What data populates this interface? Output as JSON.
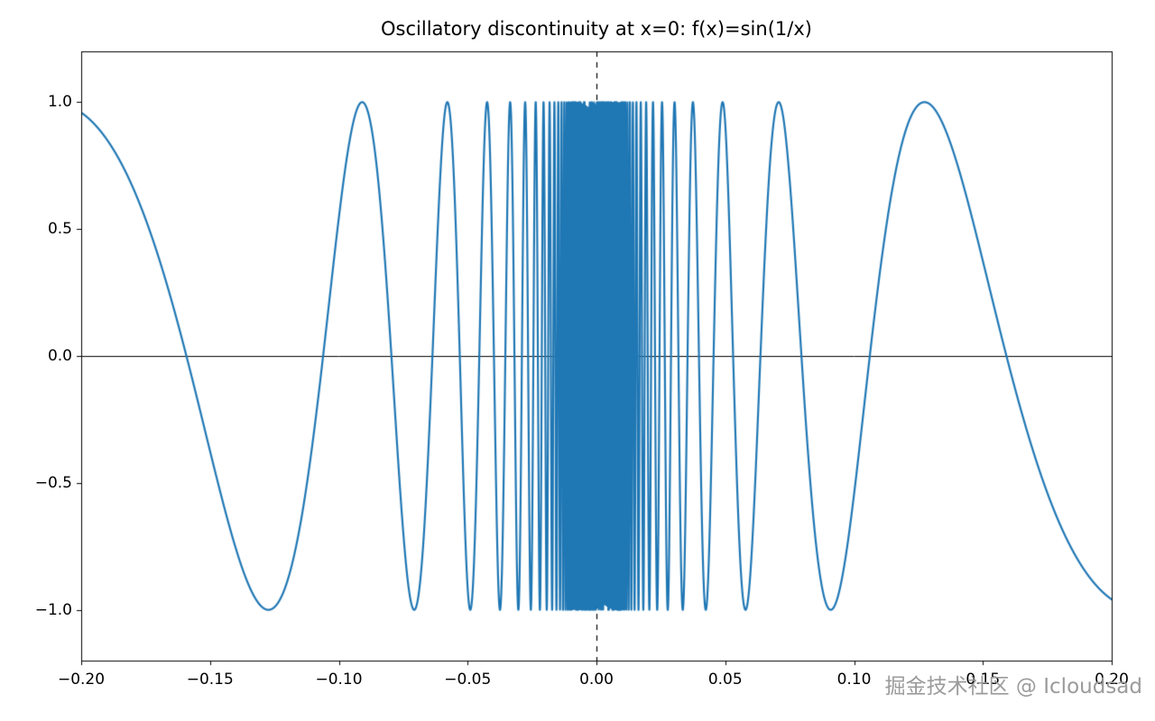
{
  "chart_data": {
    "type": "line",
    "title": "Oscillatory discontinuity at x=0: f(x)=sin(1/x)",
    "function": "sin(1/x)",
    "x_range": [
      -0.2,
      0.2
    ],
    "samples": 30000,
    "xlim": [
      -0.2,
      0.2
    ],
    "ylim": [
      -1.2,
      1.2
    ],
    "x_ticks": [
      -0.2,
      -0.15,
      -0.1,
      -0.05,
      0.0,
      0.05,
      0.1,
      0.15,
      0.2
    ],
    "x_tick_labels": [
      "−0.20",
      "−0.15",
      "−0.10",
      "−0.05",
      "0.00",
      "0.05",
      "0.10",
      "0.15",
      "0.20"
    ],
    "y_ticks": [
      -1.0,
      -0.5,
      0.0,
      0.5,
      1.0
    ],
    "y_tick_labels": [
      "−1.0",
      "−0.5",
      "0.0",
      "0.5",
      "1.0"
    ],
    "line_color": "#1f77b4",
    "line_width": 2.2,
    "hline_y": 0,
    "vline_x": 0,
    "vline_style": "dashed",
    "grid": false,
    "legend": null,
    "xlabel": "",
    "ylabel": ""
  },
  "watermark": {
    "text": "掘金技术社区 @ Icloudsad",
    "color": "#9b9b9b"
  }
}
